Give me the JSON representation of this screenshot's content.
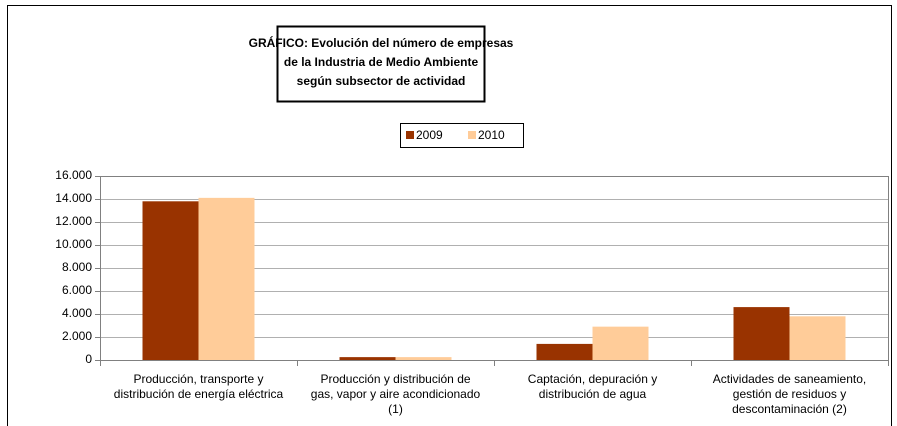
{
  "chart_data": {
    "type": "bar",
    "title": [
      "GRÁFICO: Evolución del número de empresas",
      "de la Industria de Medio Ambiente",
      "según subsector de actividad"
    ],
    "categories": [
      [
        "Producción, transporte y",
        "distribución de energía eléctrica"
      ],
      [
        "Producción y distribución de",
        "gas, vapor y aire acondicionado",
        "(1)"
      ],
      [
        "Captación, depuración y",
        "distribución de agua"
      ],
      [
        "Actividades de saneamiento,",
        "gestión de residuos y",
        "descontaminación (2)"
      ]
    ],
    "series": [
      {
        "name": "2009",
        "color": "#993300",
        "values": [
          13800,
          250,
          1400,
          4600
        ]
      },
      {
        "name": "2010",
        "color": "#ffcc99",
        "values": [
          14100,
          250,
          2900,
          3800
        ]
      }
    ],
    "ylim": [
      0,
      16000
    ],
    "yticks": [
      0,
      {
        "value": 2000,
        "label": "2.000"
      },
      {
        "value": 4000,
        "label": "4.000"
      },
      {
        "value": 6000,
        "label": "6.000"
      },
      {
        "value": 8000,
        "label": "8.000"
      },
      {
        "value": 10000,
        "label": "10.000"
      },
      {
        "value": 12000,
        "label": "12.000"
      },
      {
        "value": 14000,
        "label": "14.000"
      },
      {
        "value": 16000,
        "label": "16.000"
      }
    ],
    "grid": true,
    "legend": "top"
  }
}
